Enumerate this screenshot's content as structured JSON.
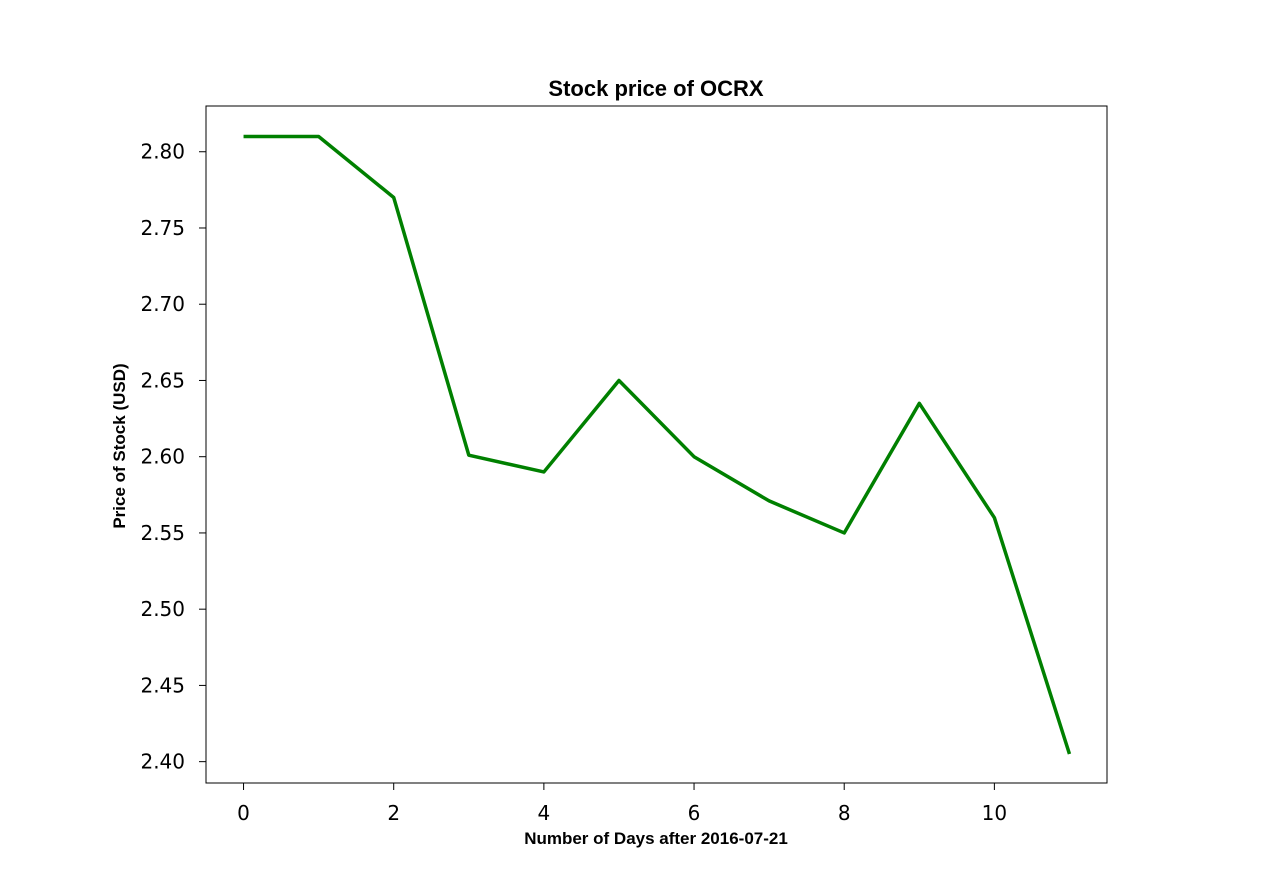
{
  "chart_data": {
    "type": "line",
    "title": "Stock price of OCRX",
    "xlabel": "Number of Days after 2016-07-21",
    "ylabel": "Price of Stock (USD)",
    "x": [
      0,
      1,
      2,
      3,
      4,
      5,
      6,
      7,
      8,
      9,
      10,
      11
    ],
    "series": [
      {
        "values": [
          2.81,
          2.81,
          2.77,
          2.601,
          2.59,
          2.65,
          2.6,
          2.571,
          2.55,
          2.635,
          2.56,
          2.405
        ],
        "color": "#008000"
      }
    ],
    "xlim": [
      -0.5,
      11.5
    ],
    "ylim": [
      2.386,
      2.83
    ],
    "xticks": [
      0,
      2,
      4,
      6,
      8,
      10
    ],
    "xtick_labels": [
      "0",
      "2",
      "4",
      "6",
      "8",
      "10"
    ],
    "yticks": [
      2.4,
      2.45,
      2.5,
      2.55,
      2.6,
      2.65,
      2.7,
      2.75,
      2.8
    ],
    "ytick_labels": [
      "2.40",
      "2.45",
      "2.50",
      "2.55",
      "2.60",
      "2.65",
      "2.70",
      "2.75",
      "2.80"
    ],
    "grid": false,
    "legend": false
  }
}
